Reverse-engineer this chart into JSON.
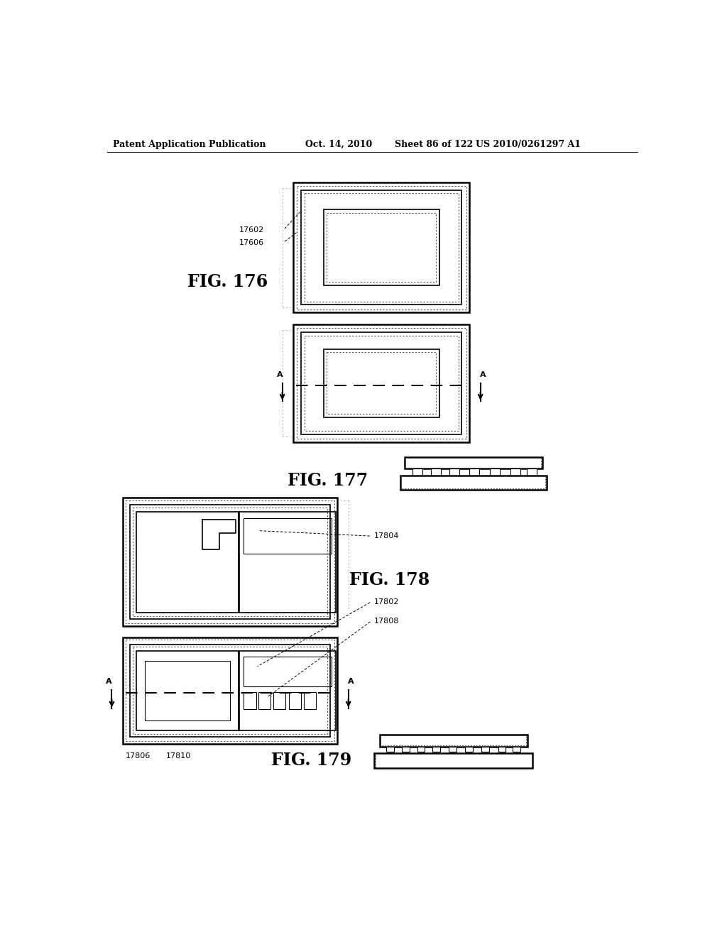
{
  "bg_color": "#ffffff",
  "line_color": "#000000",
  "header_text": "Patent Application Publication",
  "header_date": "Oct. 14, 2010",
  "header_sheet": "Sheet 86 of 122",
  "header_patent": "US 2010/0261297 A1",
  "fig176_label": "FIG. 176",
  "fig177_label": "FIG. 177",
  "fig178_label": "FIG. 178",
  "fig179_label": "FIG. 179",
  "label_17602": "17602",
  "label_17606": "17606",
  "label_17804": "17804",
  "label_17802": "17802",
  "label_17808": "17808",
  "label_17806": "17806",
  "label_17810": "17810"
}
